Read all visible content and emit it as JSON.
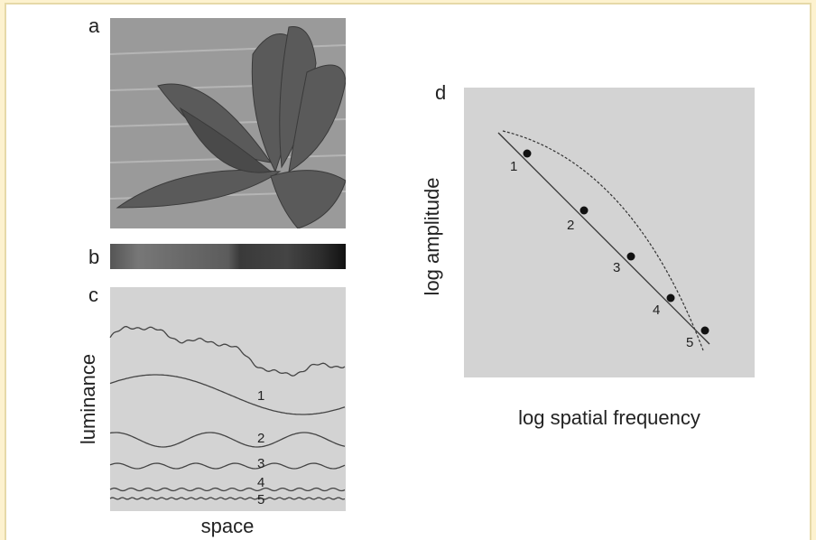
{
  "panels": [
    {
      "label": "a"
    },
    {
      "label": "b"
    },
    {
      "label": "c",
      "y_label": "luminance",
      "x_label": "space",
      "curve_labels": [
        "1",
        "2",
        "3",
        "4",
        "5"
      ]
    },
    {
      "label": "d",
      "y_label": "log amplitude",
      "x_label": "log spatial frequency",
      "point_labels": [
        "1",
        "2",
        "3",
        "4",
        "5"
      ]
    }
  ]
}
